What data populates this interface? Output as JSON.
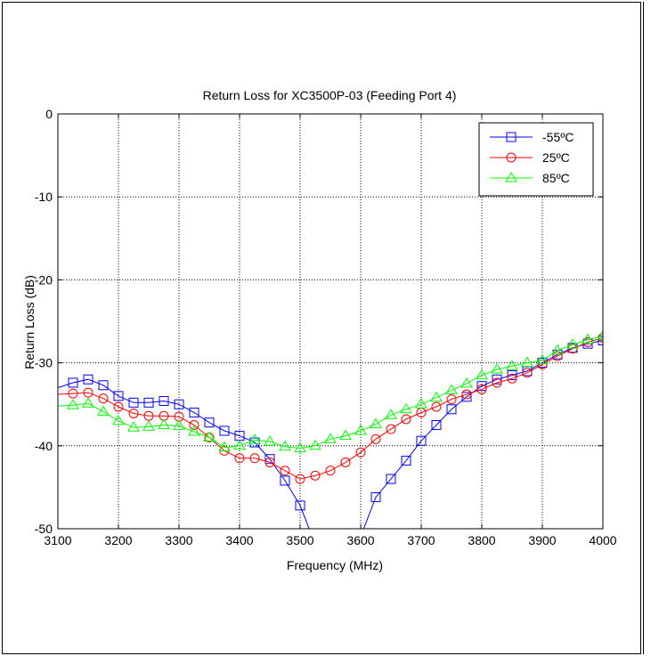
{
  "chart_data": {
    "type": "line",
    "title": "Return Loss for XC3500P-03 (Feeding Port 4)",
    "xlabel": "Frequency (MHz)",
    "ylabel": "Return Loss (dB)",
    "xlim": [
      3100,
      4000
    ],
    "ylim": [
      -50,
      0
    ],
    "x_ticks": [
      "3100",
      "3200",
      "3300",
      "3400",
      "3500",
      "3600",
      "3700",
      "3800",
      "3900",
      "4000"
    ],
    "y_ticks": [
      "0",
      "-10",
      "-20",
      "-30",
      "-40",
      "-50"
    ],
    "grid": true,
    "legend_position": "top-right",
    "series": [
      {
        "name": "-55ºC",
        "color": "#0000ff",
        "marker": "square",
        "x": [
          3100,
          3125,
          3150,
          3175,
          3200,
          3225,
          3250,
          3275,
          3300,
          3325,
          3350,
          3375,
          3400,
          3425,
          3450,
          3475,
          3500,
          3515,
          3605,
          3625,
          3650,
          3675,
          3700,
          3725,
          3750,
          3775,
          3800,
          3825,
          3850,
          3875,
          3900,
          3925,
          3950,
          3975,
          4000
        ],
        "y": [
          -33.0,
          -32.4,
          -32.0,
          -32.7,
          -34.0,
          -34.8,
          -34.8,
          -34.6,
          -35.0,
          -36.0,
          -37.2,
          -38.2,
          -38.8,
          -39.6,
          -41.6,
          -44.2,
          -47.2,
          -50.0,
          -50.0,
          -46.2,
          -44.0,
          -41.8,
          -39.4,
          -37.5,
          -35.6,
          -34.1,
          -32.8,
          -32.0,
          -31.5,
          -31.0,
          -30.0,
          -29.0,
          -28.2,
          -27.7,
          -27.3
        ],
        "marker_x": [
          3125,
          3150,
          3175,
          3200,
          3225,
          3250,
          3275,
          3300,
          3325,
          3350,
          3375,
          3400,
          3425,
          3450,
          3475,
          3500,
          3625,
          3650,
          3675,
          3700,
          3725,
          3750,
          3775,
          3800,
          3825,
          3850,
          3875,
          3900,
          3925,
          3950,
          3975,
          4000
        ]
      },
      {
        "name": "25ºC",
        "color": "#ff0000",
        "marker": "circle",
        "x": [
          3100,
          3125,
          3150,
          3175,
          3200,
          3225,
          3250,
          3275,
          3300,
          3325,
          3350,
          3375,
          3400,
          3425,
          3450,
          3475,
          3500,
          3525,
          3550,
          3575,
          3600,
          3625,
          3650,
          3675,
          3700,
          3725,
          3750,
          3775,
          3800,
          3825,
          3850,
          3875,
          3900,
          3925,
          3950,
          3975,
          4000
        ],
        "y": [
          -33.8,
          -33.7,
          -33.6,
          -34.3,
          -35.3,
          -36.1,
          -36.4,
          -36.4,
          -36.5,
          -37.5,
          -39.0,
          -40.6,
          -41.5,
          -41.5,
          -42.0,
          -43.0,
          -44.0,
          -43.6,
          -43.0,
          -42.0,
          -40.8,
          -39.2,
          -38.0,
          -36.8,
          -36.0,
          -35.3,
          -34.4,
          -33.8,
          -33.2,
          -32.4,
          -31.9,
          -31.2,
          -30.2,
          -29.2,
          -28.3,
          -27.5,
          -27.0
        ],
        "marker_x": [
          3125,
          3150,
          3175,
          3200,
          3225,
          3250,
          3275,
          3300,
          3325,
          3350,
          3375,
          3400,
          3425,
          3450,
          3475,
          3500,
          3525,
          3550,
          3575,
          3600,
          3625,
          3650,
          3675,
          3700,
          3725,
          3750,
          3775,
          3800,
          3825,
          3850,
          3875,
          3900,
          3925,
          3950,
          3975,
          4000
        ]
      },
      {
        "name": "85ºC",
        "color": "#00ff00",
        "marker": "triangle",
        "x": [
          3100,
          3125,
          3150,
          3175,
          3200,
          3225,
          3250,
          3275,
          3300,
          3325,
          3350,
          3375,
          3400,
          3425,
          3450,
          3475,
          3500,
          3525,
          3550,
          3575,
          3600,
          3625,
          3650,
          3675,
          3700,
          3725,
          3750,
          3775,
          3800,
          3825,
          3850,
          3875,
          3900,
          3925,
          3950,
          3975,
          4000
        ],
        "y": [
          -35.2,
          -35.1,
          -34.9,
          -35.9,
          -37.0,
          -37.8,
          -37.7,
          -37.5,
          -37.6,
          -38.3,
          -39.0,
          -40.2,
          -40.0,
          -39.3,
          -39.5,
          -40.1,
          -40.3,
          -40.0,
          -39.2,
          -38.8,
          -38.2,
          -37.4,
          -36.3,
          -35.6,
          -35.0,
          -34.2,
          -33.3,
          -32.5,
          -31.5,
          -30.8,
          -30.4,
          -30.0,
          -29.7,
          -28.5,
          -27.8,
          -27.2,
          -26.8
        ],
        "marker_x": [
          3125,
          3150,
          3175,
          3200,
          3225,
          3250,
          3275,
          3300,
          3325,
          3350,
          3375,
          3400,
          3425,
          3450,
          3475,
          3500,
          3525,
          3550,
          3575,
          3600,
          3625,
          3650,
          3675,
          3700,
          3725,
          3750,
          3775,
          3800,
          3825,
          3850,
          3875,
          3900,
          3925,
          3950,
          3975,
          4000
        ]
      }
    ]
  }
}
